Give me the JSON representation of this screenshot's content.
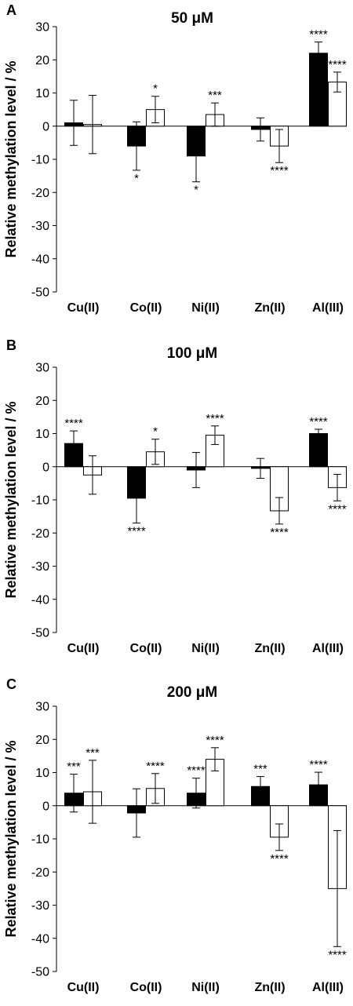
{
  "chart_data": [
    {
      "type": "bar",
      "panel": "A",
      "title": "50 μM",
      "ylabel": "Relative methylation level / %",
      "ylim": [
        -50,
        30
      ],
      "yticks": [
        30,
        20,
        10,
        0,
        -10,
        -20,
        -30,
        -40,
        -50
      ],
      "categories": [
        "Cu(II)",
        "Co(II)",
        "Ni(II)",
        "Zn(II)",
        "Al(III)"
      ],
      "series": [
        {
          "fill": "#000000",
          "values": [
            1,
            -6,
            -9,
            -1,
            22
          ],
          "error": [
            6.8,
            7.3,
            7.8,
            3.5,
            3.4
          ],
          "significance": [
            "",
            "*",
            "*",
            "",
            "****"
          ]
        },
        {
          "fill": "#ffffff",
          "values": [
            0.5,
            5,
            3.5,
            -6,
            13.3
          ],
          "error": [
            8.8,
            4.0,
            3.5,
            5.0,
            3.0
          ],
          "significance": [
            "",
            "*",
            "***",
            "****",
            "****"
          ]
        }
      ]
    },
    {
      "type": "bar",
      "panel": "B",
      "title": "100 μM",
      "ylabel": "Relative methylation level / %",
      "ylim": [
        -50,
        30
      ],
      "yticks": [
        30,
        20,
        10,
        0,
        -10,
        -20,
        -30,
        -40,
        -50
      ],
      "categories": [
        "Cu(II)",
        "Co(II)",
        "Ni(II)",
        "Zn(II)",
        "Al(III)"
      ],
      "series": [
        {
          "fill": "#000000",
          "values": [
            7,
            -9.5,
            -1,
            -0.5,
            10
          ],
          "error": [
            3.8,
            7.5,
            5.3,
            3.0,
            1.3
          ],
          "significance": [
            "****",
            "****",
            "",
            "",
            "****"
          ]
        },
        {
          "fill": "#ffffff",
          "values": [
            -2.5,
            4.5,
            9.5,
            -13.3,
            -6.3
          ],
          "error": [
            5.8,
            3.8,
            2.8,
            4.0,
            4.0
          ],
          "significance": [
            "",
            "*",
            "****",
            "****",
            "****"
          ]
        }
      ]
    },
    {
      "type": "bar",
      "panel": "C",
      "title": "200 μM",
      "ylabel": "Relative methylation level / %",
      "ylim": [
        -50,
        30
      ],
      "yticks": [
        30,
        20,
        10,
        0,
        -10,
        -20,
        -30,
        -40,
        -50
      ],
      "categories": [
        "Cu(II)",
        "Co(II)",
        "Ni(II)",
        "Zn(II)",
        "Al(III)"
      ],
      "series": [
        {
          "fill": "#000000",
          "values": [
            3.8,
            -2.2,
            3.8,
            5.8,
            6.3
          ],
          "error": [
            5.7,
            7.3,
            4.5,
            3.0,
            3.8
          ],
          "significance": [
            "***",
            "",
            "****",
            "***",
            "****"
          ]
        },
        {
          "fill": "#ffffff",
          "values": [
            4.2,
            5.2,
            14,
            -9.5,
            -25
          ],
          "error": [
            9.5,
            4.5,
            3.5,
            4.0,
            17.5
          ],
          "significance": [
            "***",
            "****",
            "****",
            "****",
            "****"
          ]
        }
      ]
    }
  ]
}
